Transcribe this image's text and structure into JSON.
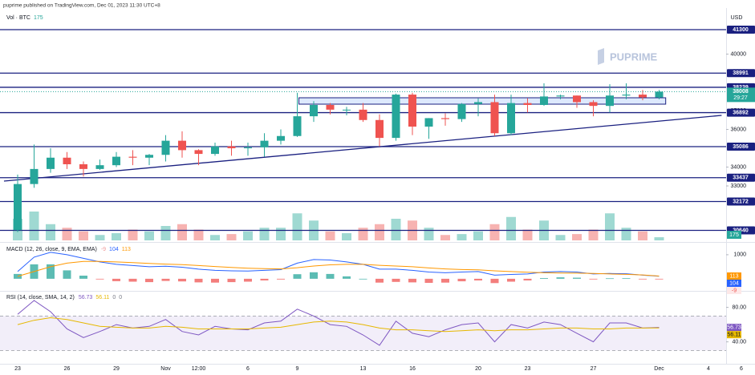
{
  "header": {
    "publisher_line": "puprime published on TradingView.com, Dec 01, 2023 11:30 UTC+8",
    "watermark": "PUPRIME",
    "currency": "USD"
  },
  "chart_data": [
    {
      "type": "candlestick",
      "categories": [
        "23",
        null,
        null,
        "26",
        null,
        null,
        "29",
        null,
        null,
        "Nov",
        null,
        "12:00",
        null,
        null,
        "6",
        null,
        null,
        "9",
        null,
        null,
        null,
        "13",
        null,
        null,
        "16",
        null,
        null,
        null,
        "20",
        null,
        null,
        "23",
        null,
        null,
        null,
        "27",
        null,
        null,
        null,
        "Dec",
        null,
        null,
        "4",
        null,
        "6"
      ],
      "open": [
        30650,
        33100,
        33900,
        34500,
        34150,
        33900,
        34100,
        34550,
        34500,
        34650,
        35400,
        34900,
        34700,
        35100,
        35000,
        35050,
        35400,
        35650,
        36700,
        37300,
        37050,
        37050,
        36500,
        35550,
        37850,
        36150,
        36600,
        36550,
        37350,
        37450,
        35800,
        37400,
        37300,
        37750,
        37800,
        37450,
        37250,
        37800,
        37850,
        37700,
        null,
        null,
        null,
        null,
        null
      ],
      "high": [
        33600,
        35200,
        35000,
        34800,
        34300,
        34400,
        34800,
        34900,
        34700,
        35700,
        35900,
        34950,
        35300,
        35400,
        35300,
        35800,
        36000,
        37950,
        37500,
        37400,
        37200,
        37400,
        36800,
        37900,
        37950,
        36600,
        36850,
        37400,
        37650,
        37850,
        37850,
        37650,
        38450,
        37850,
        37800,
        37550,
        38400,
        38450,
        38100,
        38100,
        null,
        null,
        null,
        null,
        null
      ],
      "low": [
        30550,
        32900,
        33700,
        33900,
        33500,
        33850,
        34000,
        34100,
        34100,
        34300,
        34500,
        34100,
        34600,
        34600,
        34600,
        34550,
        35200,
        35600,
        36400,
        36800,
        36750,
        36400,
        35100,
        35400,
        35700,
        35500,
        36200,
        36400,
        36700,
        35650,
        35700,
        36900,
        37250,
        37600,
        37150,
        36700,
        36900,
        37600,
        37550,
        37600,
        null,
        null,
        null,
        null,
        null
      ],
      "close": [
        33100,
        33900,
        34500,
        34150,
        33900,
        34100,
        34550,
        34500,
        34650,
        35400,
        34900,
        34700,
        35100,
        35000,
        35050,
        35400,
        35650,
        36700,
        37300,
        37050,
        37050,
        36500,
        35550,
        37850,
        36150,
        36600,
        36550,
        37350,
        37450,
        35800,
        37400,
        37300,
        37750,
        37800,
        37450,
        37250,
        37800,
        37850,
        37700,
        38008,
        null,
        null,
        null,
        null,
        null
      ],
      "ylim": [
        30107,
        42449
      ],
      "yticks": [
        33000,
        34000,
        36000,
        37000,
        40000
      ],
      "levels": [
        41300,
        38991,
        38239,
        36892,
        35086,
        33437,
        32172,
        30640
      ],
      "level_color": "#1a2080",
      "up_color": "#26a69a",
      "down_color": "#ef5350",
      "countdown": "29:27",
      "trendline": {
        "x": [
          -0.83,
          42.8
        ],
        "y": [
          33256,
          36746
        ]
      },
      "zone": {
        "x": [
          17.1,
          39.4
        ],
        "y": [
          37342,
          37682
        ]
      }
    },
    {
      "type": "bar",
      "label": "Vol · BTC",
      "values": [
        1200,
        1600,
        900,
        700,
        500,
        300,
        400,
        600,
        500,
        800,
        900,
        600,
        300,
        350,
        500,
        700,
        700,
        1500,
        1100,
        500,
        400,
        700,
        900,
        1200,
        1100,
        700,
        300,
        350,
        500,
        900,
        1300,
        600,
        1100,
        300,
        350,
        600,
        1500,
        700,
        500,
        175,
        null,
        null,
        null,
        null,
        null
      ],
      "ylim": [
        0,
        2000
      ],
      "up_color": "#9fd9d2",
      "down_color": "#f7b3b1",
      "badge_color": "#26a69a"
    },
    {
      "type": "macd",
      "title": "MACD (12, 26, close, 9, EMA, EMA)",
      "ylim": [
        -470,
        1430
      ],
      "yticks": [
        1000
      ],
      "series": [
        {
          "style": "histogram",
          "up_color": "#26a69a",
          "down_color": "#ef5350",
          "color": "#ef9a9a",
          "values": [
            200,
            600,
            600,
            350,
            130,
            -20,
            -100,
            -120,
            -140,
            -90,
            -110,
            -150,
            -160,
            -140,
            -120,
            -70,
            -30,
            190,
            270,
            200,
            100,
            0,
            -160,
            -130,
            -150,
            -170,
            -160,
            -105,
            -70,
            -180,
            -120,
            -70,
            30,
            60,
            45,
            -20,
            20,
            25,
            -10,
            -9,
            null,
            null,
            null,
            null,
            null
          ]
        },
        {
          "style": "line",
          "color": "#2962ff",
          "values": [
            300,
            900,
            1100,
            1000,
            850,
            700,
            600,
            550,
            500,
            520,
            480,
            400,
            350,
            330,
            320,
            350,
            380,
            650,
            800,
            780,
            700,
            600,
            400,
            400,
            350,
            280,
            250,
            280,
            300,
            150,
            180,
            200,
            280,
            300,
            280,
            200,
            220,
            210,
            150,
            104,
            null,
            null,
            null,
            null,
            null
          ]
        },
        {
          "style": "line",
          "color": "#ff9800",
          "values": [
            100,
            300,
            500,
            650,
            720,
            720,
            700,
            670,
            640,
            610,
            590,
            550,
            510,
            470,
            440,
            420,
            410,
            460,
            530,
            580,
            600,
            600,
            560,
            530,
            500,
            450,
            410,
            385,
            370,
            330,
            300,
            270,
            250,
            240,
            235,
            220,
            200,
            185,
            160,
            113,
            null,
            null,
            null,
            null,
            null
          ]
        }
      ]
    },
    {
      "type": "line",
      "title": "RSI (14, close, SMA, 14, 2)",
      "ylim": [
        15.5,
        97.3
      ],
      "yticks": [
        {
          "value": 80,
          "label": "80.00"
        },
        {
          "value": 40,
          "label": "40.00"
        }
      ],
      "band": [
        30,
        70
      ],
      "band_color": "#7e57c2",
      "status_values": [
        0,
        0
      ],
      "series": [
        {
          "color": "#7e57c2",
          "values": [
            72,
            88,
            75,
            55,
            45,
            52,
            60,
            56,
            58,
            66,
            52,
            48,
            58,
            55,
            54,
            62,
            64,
            78,
            70,
            60,
            58,
            48,
            36,
            64,
            50,
            46,
            54,
            60,
            62,
            40,
            60,
            56,
            63,
            60,
            50,
            40,
            62,
            62,
            56,
            56.73,
            null,
            null,
            null,
            null,
            null
          ]
        },
        {
          "color": "#e6b800",
          "values": [
            60,
            65,
            68,
            66,
            62,
            58,
            57,
            56,
            56,
            58,
            57,
            55,
            55,
            55,
            55,
            56,
            57,
            60,
            63,
            64,
            63,
            60,
            56,
            54,
            54,
            53,
            52,
            53,
            54,
            53,
            54,
            54,
            55,
            56,
            56,
            55,
            55,
            56,
            56,
            56.11,
            null,
            null,
            null,
            null,
            null
          ]
        }
      ]
    }
  ]
}
